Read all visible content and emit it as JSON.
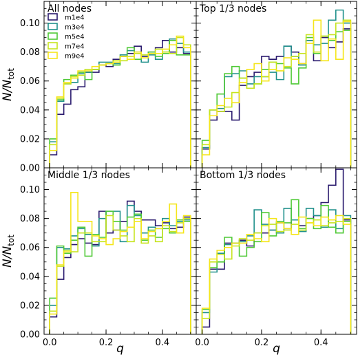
{
  "chart_data": {
    "type": "histogram-step",
    "ylabel": "N/N_tot",
    "xlabel": "q",
    "xlim": [
      -0.02,
      0.52
    ],
    "ylim": [
      0,
      0.115
    ],
    "x_ticks": [
      0.0,
      0.2,
      0.4
    ],
    "y_ticks": [
      0.0,
      0.02,
      0.04,
      0.06,
      0.08,
      0.1
    ],
    "bin_edges": [
      0.0,
      0.025,
      0.05,
      0.075,
      0.1,
      0.125,
      0.15,
      0.175,
      0.2,
      0.225,
      0.25,
      0.275,
      0.3,
      0.325,
      0.35,
      0.375,
      0.4,
      0.425,
      0.45,
      0.475,
      0.5
    ],
    "legend_placement": "upper-left of top-left panel",
    "series_meta": [
      {
        "name": "m1e4",
        "color": "#2a1a6e"
      },
      {
        "name": "m3e4",
        "color": "#21918c"
      },
      {
        "name": "m5e4",
        "color": "#4fc936"
      },
      {
        "name": "m7e4",
        "color": "#c6e41e"
      },
      {
        "name": "m9e4",
        "color": "#f5e61b"
      }
    ],
    "panels": [
      {
        "title": "All nodes",
        "series": [
          {
            "name": "m1e4",
            "values": [
              0.009,
              0.037,
              0.044,
              0.054,
              0.056,
              0.066,
              0.066,
              0.071,
              0.07,
              0.075,
              0.077,
              0.079,
              0.084,
              0.077,
              0.08,
              0.083,
              0.088,
              0.08,
              0.083,
              0.079
            ]
          },
          {
            "name": "m3e4",
            "values": [
              0.018,
              0.046,
              0.058,
              0.059,
              0.065,
              0.066,
              0.068,
              0.073,
              0.073,
              0.072,
              0.078,
              0.081,
              0.08,
              0.073,
              0.078,
              0.075,
              0.08,
              0.089,
              0.086,
              0.08
            ]
          },
          {
            "name": "m5e4",
            "values": [
              0.02,
              0.047,
              0.061,
              0.064,
              0.066,
              0.061,
              0.068,
              0.071,
              0.072,
              0.071,
              0.077,
              0.083,
              0.075,
              0.078,
              0.08,
              0.077,
              0.079,
              0.088,
              0.078,
              0.078
            ]
          },
          {
            "name": "m7e4",
            "values": [
              0.016,
              0.048,
              0.058,
              0.063,
              0.064,
              0.068,
              0.068,
              0.071,
              0.072,
              0.074,
              0.074,
              0.077,
              0.079,
              0.078,
              0.079,
              0.082,
              0.08,
              0.079,
              0.09,
              0.085
            ]
          },
          {
            "name": "m9e4",
            "values": [
              0.012,
              0.049,
              0.059,
              0.062,
              0.067,
              0.067,
              0.07,
              0.071,
              0.072,
              0.073,
              0.077,
              0.075,
              0.08,
              0.076,
              0.079,
              0.079,
              0.082,
              0.085,
              0.091,
              0.083
            ]
          }
        ]
      },
      {
        "title": "Top 1/3 nodes",
        "series": [
          {
            "name": "m1e4",
            "values": [
              0.013,
              0.033,
              0.039,
              0.039,
              0.033,
              0.057,
              0.063,
              0.066,
              0.077,
              0.075,
              0.077,
              0.084,
              0.08,
              0.072,
              0.088,
              0.074,
              0.09,
              0.083,
              0.087,
              0.096
            ]
          },
          {
            "name": "m3e4",
            "values": [
              0.014,
              0.04,
              0.041,
              0.063,
              0.065,
              0.067,
              0.058,
              0.063,
              0.063,
              0.066,
              0.061,
              0.084,
              0.077,
              0.071,
              0.088,
              0.085,
              0.086,
              0.102,
              0.109,
              0.1
            ]
          },
          {
            "name": "m5e4",
            "values": [
              0.019,
              0.04,
              0.051,
              0.065,
              0.07,
              0.062,
              0.055,
              0.058,
              0.068,
              0.073,
              0.072,
              0.069,
              0.058,
              0.069,
              0.09,
              0.079,
              0.091,
              0.088,
              0.094,
              0.095
            ]
          },
          {
            "name": "m7e4",
            "values": [
              0.016,
              0.04,
              0.039,
              0.042,
              0.052,
              0.062,
              0.055,
              0.058,
              0.063,
              0.073,
              0.067,
              0.07,
              0.077,
              0.079,
              0.092,
              0.08,
              0.091,
              0.092,
              0.1,
              0.102
            ]
          },
          {
            "name": "m9e4",
            "values": [
              0.009,
              0.036,
              0.043,
              0.048,
              0.045,
              0.059,
              0.068,
              0.072,
              0.06,
              0.068,
              0.067,
              0.076,
              0.075,
              0.072,
              0.086,
              0.102,
              0.074,
              0.089,
              0.075,
              0.101
            ]
          }
        ]
      },
      {
        "title": "Middle 1/3 nodes",
        "series": [
          {
            "name": "m1e4",
            "values": [
              0.012,
              0.038,
              0.053,
              0.062,
              0.066,
              0.063,
              0.062,
              0.085,
              0.07,
              0.072,
              0.078,
              0.092,
              0.085,
              0.079,
              0.079,
              0.075,
              0.077,
              0.073,
              0.074,
              0.081
            ]
          },
          {
            "name": "m3e4",
            "values": [
              0.02,
              0.06,
              0.059,
              0.068,
              0.073,
              0.069,
              0.061,
              0.08,
              0.085,
              0.085,
              0.064,
              0.089,
              0.082,
              0.07,
              0.074,
              0.073,
              0.08,
              0.075,
              0.078,
              0.079
            ]
          },
          {
            "name": "m5e4",
            "values": [
              0.025,
              0.061,
              0.056,
              0.065,
              0.074,
              0.054,
              0.069,
              0.067,
              0.085,
              0.078,
              0.072,
              0.081,
              0.083,
              0.065,
              0.072,
              0.067,
              0.073,
              0.07,
              0.079,
              0.078
            ]
          },
          {
            "name": "m7e4",
            "values": [
              0.016,
              0.047,
              0.058,
              0.057,
              0.07,
              0.07,
              0.064,
              0.064,
              0.082,
              0.072,
              0.068,
              0.064,
              0.08,
              0.063,
              0.068,
              0.064,
              0.075,
              0.071,
              0.077,
              0.08
            ]
          },
          {
            "name": "m9e4",
            "values": [
              0.014,
              0.048,
              0.057,
              0.098,
              0.078,
              0.078,
              0.068,
              0.066,
              0.062,
              0.066,
              0.071,
              0.074,
              0.078,
              0.066,
              0.071,
              0.073,
              0.078,
              0.09,
              0.07,
              0.082
            ]
          }
        ]
      },
      {
        "title": "Bottom 1/3 nodes",
        "series": [
          {
            "name": "m1e4",
            "values": [
              0.005,
              0.045,
              0.045,
              0.063,
              0.063,
              0.065,
              0.061,
              0.07,
              0.07,
              0.072,
              0.077,
              0.073,
              0.079,
              0.075,
              0.08,
              0.082,
              0.091,
              0.103,
              0.114,
              0.079
            ]
          },
          {
            "name": "m3e4",
            "values": [
              0.015,
              0.043,
              0.056,
              0.062,
              0.063,
              0.064,
              0.068,
              0.086,
              0.076,
              0.072,
              0.07,
              0.087,
              0.079,
              0.071,
              0.087,
              0.082,
              0.074,
              0.086,
              0.073,
              0.082
            ]
          },
          {
            "name": "m5e4",
            "values": [
              0.017,
              0.046,
              0.05,
              0.067,
              0.063,
              0.054,
              0.06,
              0.064,
              0.084,
              0.068,
              0.078,
              0.077,
              0.093,
              0.073,
              0.08,
              0.073,
              0.089,
              0.074,
              0.07,
              0.078
            ]
          },
          {
            "name": "m7e4",
            "values": [
              0.011,
              0.05,
              0.055,
              0.052,
              0.061,
              0.066,
              0.065,
              0.07,
              0.075,
              0.076,
              0.071,
              0.072,
              0.076,
              0.072,
              0.077,
              0.079,
              0.075,
              0.077,
              0.078,
              0.08
            ]
          },
          {
            "name": "m9e4",
            "values": [
              0.018,
              0.052,
              0.058,
              0.06,
              0.063,
              0.063,
              0.069,
              0.066,
              0.064,
              0.08,
              0.077,
              0.073,
              0.069,
              0.081,
              0.077,
              0.075,
              0.081,
              0.079,
              0.082,
              0.076
            ]
          }
        ]
      }
    ]
  }
}
